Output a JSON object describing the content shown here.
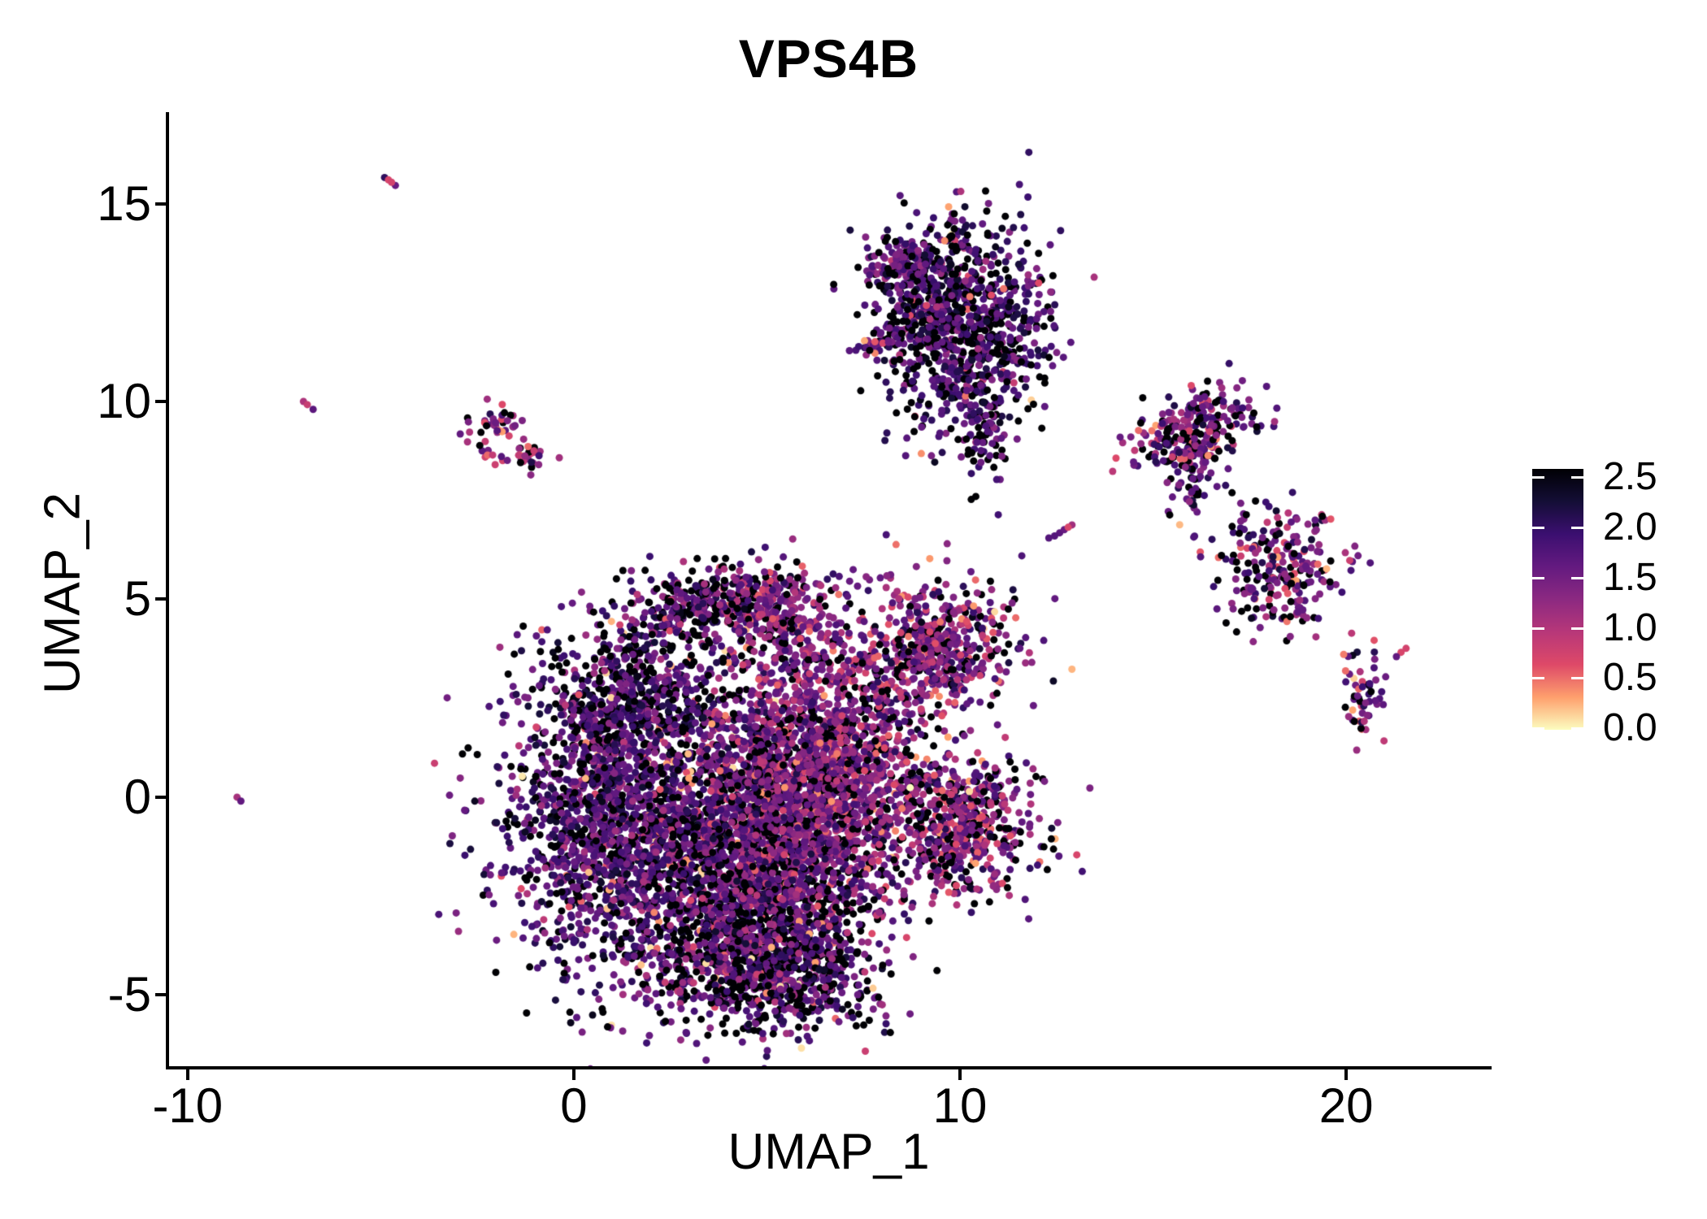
{
  "title": "VPS4B",
  "axes": {
    "x_label": "UMAP_1",
    "y_label": "UMAP_2",
    "x_domain": [
      -10.48,
      23.68
    ],
    "y_domain": [
      -6.8,
      17.27
    ],
    "x_ticks": [
      {
        "v": -10,
        "label": "-10"
      },
      {
        "v": 0,
        "label": "0"
      },
      {
        "v": 10,
        "label": "10"
      },
      {
        "v": 20,
        "label": "20"
      }
    ],
    "y_ticks": [
      {
        "v": -5,
        "label": "-5"
      },
      {
        "v": 0,
        "label": "0"
      },
      {
        "v": 5,
        "label": "5"
      },
      {
        "v": 10,
        "label": "10"
      },
      {
        "v": 15,
        "label": "15"
      }
    ]
  },
  "colorbar": {
    "vmin": 0.0,
    "vmax": 2.6,
    "ticks": [
      {
        "v": 2.5,
        "label": "2.5"
      },
      {
        "v": 2.0,
        "label": "2.0"
      },
      {
        "v": 1.5,
        "label": "1.5"
      },
      {
        "v": 1.0,
        "label": "1.0"
      },
      {
        "v": 0.5,
        "label": "0.5"
      },
      {
        "v": 0.0,
        "label": "0.0"
      }
    ]
  },
  "chart_data": {
    "type": "scatter",
    "title": "VPS4B",
    "xlabel": "UMAP_1",
    "ylabel": "UMAP_2",
    "xlim": [
      -10.48,
      23.68
    ],
    "ylim": [
      -6.8,
      17.27
    ],
    "legend_position": "right",
    "grid": false,
    "point_radius_px": 4.5,
    "seed": 1234,
    "color_scale": {
      "name": "magma",
      "domain": [
        0.0,
        2.6
      ],
      "stops": [
        [
          0.0,
          "#000004"
        ],
        [
          0.125,
          "#140e36"
        ],
        [
          0.25,
          "#3b0f70"
        ],
        [
          0.375,
          "#641a80"
        ],
        [
          0.5,
          "#8c2981"
        ],
        [
          0.625,
          "#b73779"
        ],
        [
          0.75,
          "#de4968"
        ],
        [
          0.875,
          "#fe9f6d"
        ],
        [
          1.0,
          "#fcfdbf"
        ]
      ]
    },
    "clusters": [
      {
        "name": "main-left-lobe",
        "cx": 1.2,
        "cy": -0.6,
        "sx": 1.5,
        "sy": 2.0,
        "rot": 0,
        "n": 1700,
        "p0": 0.22,
        "mean": 0.85,
        "sd": 0.35,
        "hi": 0.015
      },
      {
        "name": "main-topleft-dark",
        "cx": 1.4,
        "cy": 2.6,
        "sx": 1.1,
        "sy": 0.8,
        "rot": 0,
        "n": 420,
        "p0": 0.38,
        "mean": 0.8,
        "sd": 0.35,
        "hi": 0.01
      },
      {
        "name": "main-center",
        "cx": 4.6,
        "cy": -1.2,
        "sx": 1.5,
        "sy": 1.9,
        "rot": 0,
        "n": 2100,
        "p0": 0.26,
        "mean": 1.0,
        "sd": 0.4,
        "hi": 0.02
      },
      {
        "name": "main-center-right",
        "cx": 6.4,
        "cy": 0.4,
        "sx": 1.2,
        "sy": 1.7,
        "rot": 0,
        "n": 1400,
        "p0": 0.17,
        "mean": 1.25,
        "sd": 0.38,
        "hi": 0.03
      },
      {
        "name": "main-bottom-dark",
        "cx": 5.1,
        "cy": -4.3,
        "sx": 1.4,
        "sy": 0.8,
        "rot": 0,
        "n": 800,
        "p0": 0.36,
        "mean": 0.9,
        "sd": 0.4,
        "hi": 0.015
      },
      {
        "name": "top-bump-left",
        "cx": 3.5,
        "cy": 4.9,
        "sx": 1.1,
        "sy": 0.5,
        "rot": 0,
        "n": 330,
        "p0": 0.3,
        "mean": 0.95,
        "sd": 0.4,
        "hi": 0.02
      },
      {
        "name": "top-bump-right",
        "cx": 5.4,
        "cy": 4.6,
        "sx": 0.9,
        "sy": 0.7,
        "rot": 0,
        "n": 280,
        "p0": 0.2,
        "mean": 1.2,
        "sd": 0.4,
        "hi": 0.03
      },
      {
        "name": "upper-right-sub",
        "cx": 9.5,
        "cy": 3.8,
        "sx": 1.0,
        "sy": 0.8,
        "rot": 0,
        "n": 500,
        "p0": 0.18,
        "mean": 1.25,
        "sd": 0.42,
        "hi": 0.06
      },
      {
        "name": "right-arm",
        "cx": 10.0,
        "cy": -0.7,
        "sx": 1.05,
        "sy": 0.9,
        "rot": -0.3,
        "n": 600,
        "p0": 0.22,
        "mean": 1.2,
        "sd": 0.42,
        "hi": 0.04
      },
      {
        "name": "connector",
        "cx": 7.9,
        "cy": 2.1,
        "sx": 0.7,
        "sy": 1.1,
        "rot": 0,
        "n": 150,
        "p0": 0.25,
        "mean": 1.1,
        "sd": 0.4,
        "hi": 0.02
      },
      {
        "name": "top-cluster-main",
        "cx": 10.1,
        "cy": 11.9,
        "sx": 1.05,
        "sy": 1.25,
        "rot": 0,
        "n": 950,
        "p0": 0.32,
        "mean": 0.78,
        "sd": 0.33,
        "hi": 0.012
      },
      {
        "name": "top-cluster-knot",
        "cx": 8.6,
        "cy": 13.5,
        "sx": 0.55,
        "sy": 0.4,
        "rot": 0,
        "n": 150,
        "p0": 0.2,
        "mean": 0.95,
        "sd": 0.35,
        "hi": 0.02
      },
      {
        "name": "top-cluster-tail",
        "cx": 10.6,
        "cy": 9.3,
        "sx": 0.3,
        "sy": 0.65,
        "rot": 0,
        "n": 80,
        "p0": 0.3,
        "mean": 0.8,
        "sd": 0.3,
        "hi": 0.01
      },
      {
        "name": "top-cluster-streak",
        "cx": 9.85,
        "cy": 14.4,
        "sx": 0.12,
        "sy": 0.3,
        "rot": 0,
        "n": 20,
        "p0": 0.25,
        "mean": 0.8,
        "sd": 0.3,
        "hi": 0.05
      },
      {
        "name": "top-cluster-arm",
        "cx": 8.15,
        "cy": 11.6,
        "sx": 0.45,
        "sy": 0.16,
        "rot": 0.35,
        "n": 50,
        "p0": 0.22,
        "mean": 0.9,
        "sd": 0.3,
        "hi": 0.02
      },
      {
        "name": "right-hook-cluster",
        "cx": 16.1,
        "cy": 9.3,
        "sx": 0.8,
        "sy": 0.45,
        "rot": 0.25,
        "n": 250,
        "p0": 0.22,
        "mean": 1.1,
        "sd": 0.42,
        "hi": 0.03
      },
      {
        "name": "right-hook-tail",
        "cx": 16.1,
        "cy": 8.1,
        "sx": 0.35,
        "sy": 0.55,
        "rot": 0,
        "n": 55,
        "p0": 0.3,
        "mean": 0.9,
        "sd": 0.35,
        "hi": 0.02
      },
      {
        "name": "right-s-cluster",
        "cx": 18.3,
        "cy": 5.8,
        "sx": 0.8,
        "sy": 0.75,
        "rot": -0.5,
        "n": 250,
        "p0": 0.25,
        "mean": 1.1,
        "sd": 0.45,
        "hi": 0.04
      },
      {
        "name": "far-right-y-cluster",
        "cx": 20.4,
        "cy": 2.5,
        "sx": 0.3,
        "sy": 0.7,
        "rot": 0,
        "n": 55,
        "p0": 0.25,
        "mean": 1.05,
        "sd": 0.4,
        "hi": 0.05
      },
      {
        "name": "left-small-lobe-a",
        "cx": -2.1,
        "cy": 9.4,
        "sx": 0.45,
        "sy": 0.28,
        "rot": 0.4,
        "n": 42,
        "p0": 0.15,
        "mean": 1.25,
        "sd": 0.45,
        "hi": 0.12
      },
      {
        "name": "left-small-lobe-b",
        "cx": -1.25,
        "cy": 8.55,
        "sx": 0.35,
        "sy": 0.22,
        "rot": -0.3,
        "n": 30,
        "p0": 0.15,
        "mean": 1.35,
        "sd": 0.4,
        "hi": 0.08
      }
    ],
    "extra_points": [
      [
        -4.9,
        15.66,
        0.55
      ],
      [
        -4.8,
        15.6,
        1.9
      ],
      [
        -4.72,
        15.54,
        1.85
      ],
      [
        -4.62,
        15.46,
        1.0
      ],
      [
        -7.0,
        10.0,
        1.55
      ],
      [
        -6.9,
        9.92,
        1.75
      ],
      [
        -6.75,
        9.8,
        0.9
      ],
      [
        -8.72,
        0.0,
        1.5
      ],
      [
        -8.62,
        -0.1,
        0.95
      ],
      [
        12.45,
        6.6,
        0.85
      ],
      [
        12.58,
        6.68,
        0.9
      ],
      [
        12.7,
        6.76,
        1.0
      ],
      [
        12.8,
        6.82,
        1.9
      ],
      [
        12.9,
        6.88,
        1.45
      ],
      [
        11.6,
        6.1,
        0.8
      ],
      [
        12.3,
        6.55,
        0.85
      ],
      [
        21.3,
        3.55,
        0.95
      ],
      [
        21.42,
        3.66,
        1.9
      ],
      [
        21.55,
        3.76,
        1.85
      ],
      [
        20.2,
        3.0,
        2.45
      ],
      [
        15.7,
        8.55,
        2.05
      ],
      [
        7.65,
        11.48,
        1.9
      ]
    ]
  }
}
